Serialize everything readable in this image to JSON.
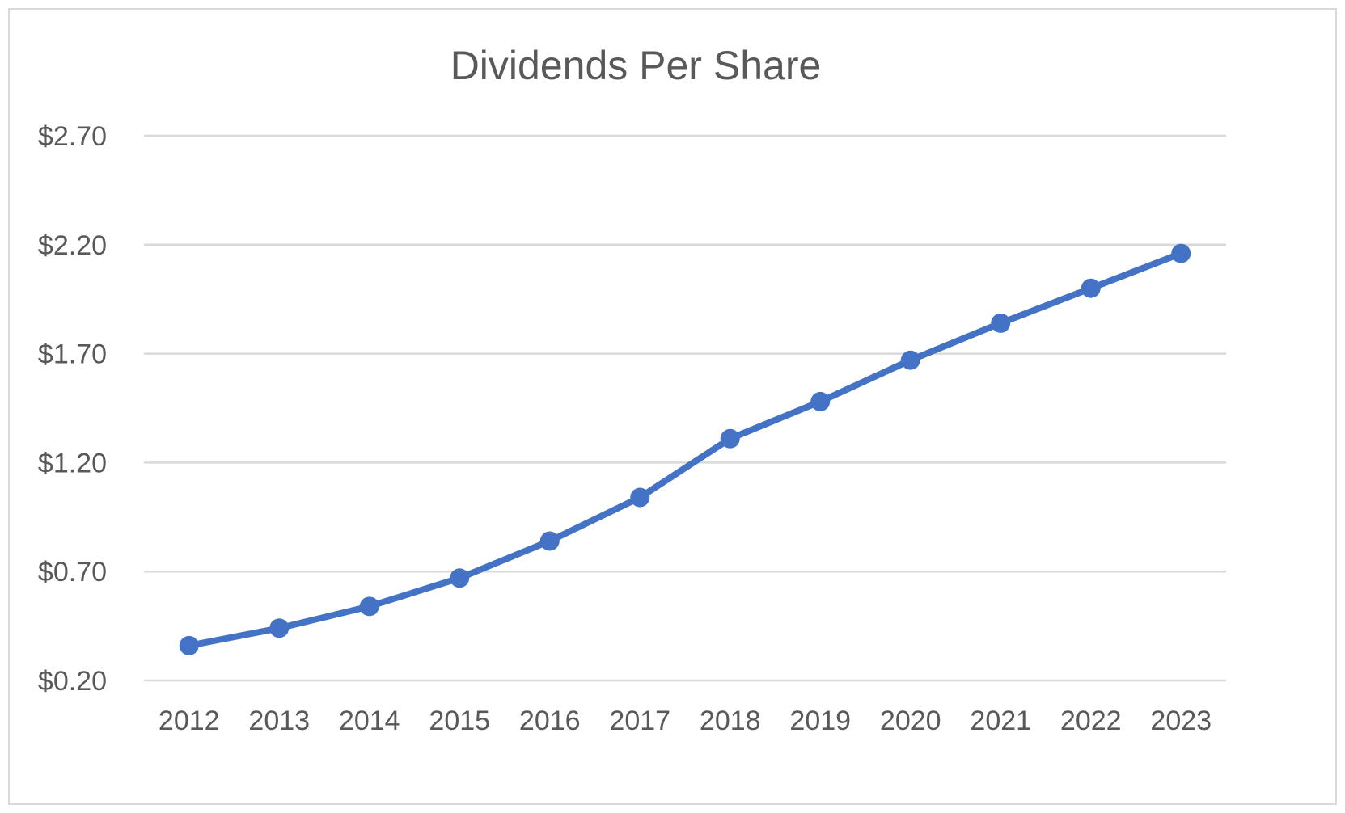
{
  "chart_data": {
    "type": "line",
    "title": "Dividends Per Share",
    "xlabel": "",
    "ylabel": "",
    "categories": [
      "2012",
      "2013",
      "2014",
      "2015",
      "2016",
      "2017",
      "2018",
      "2019",
      "2020",
      "2021",
      "2022",
      "2023"
    ],
    "series": [
      {
        "values": [
          0.36,
          0.44,
          0.54,
          0.67,
          0.84,
          1.04,
          1.31,
          1.48,
          1.67,
          1.84,
          2.0,
          2.16
        ]
      }
    ],
    "y_ticks": [
      0.2,
      0.7,
      1.2,
      1.7,
      2.2,
      2.7
    ],
    "y_tick_labels": [
      "$0.20",
      "$0.70",
      "$1.20",
      "$1.70",
      "$2.20",
      "$2.70"
    ],
    "ylim": [
      0.2,
      2.7
    ],
    "grid": true,
    "legend": "none",
    "colors": {
      "line": "#4472c4",
      "grid": "#d9d9d9",
      "text": "#595959",
      "border": "#d9d9d9"
    }
  }
}
